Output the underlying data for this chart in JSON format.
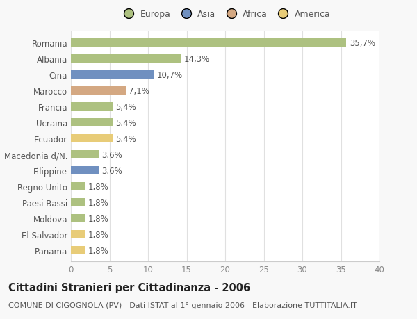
{
  "categories": [
    "Romania",
    "Albania",
    "Cina",
    "Marocco",
    "Francia",
    "Ucraina",
    "Ecuador",
    "Macedonia d/N.",
    "Filippine",
    "Regno Unito",
    "Paesi Bassi",
    "Moldova",
    "El Salvador",
    "Panama"
  ],
  "values": [
    35.7,
    14.3,
    10.7,
    7.1,
    5.4,
    5.4,
    5.4,
    3.6,
    3.6,
    1.8,
    1.8,
    1.8,
    1.8,
    1.8
  ],
  "labels": [
    "35,7%",
    "14,3%",
    "10,7%",
    "7,1%",
    "5,4%",
    "5,4%",
    "5,4%",
    "3,6%",
    "3,6%",
    "1,8%",
    "1,8%",
    "1,8%",
    "1,8%",
    "1,8%"
  ],
  "colors": [
    "#adc180",
    "#adc180",
    "#7090c0",
    "#d4a882",
    "#adc180",
    "#adc180",
    "#e8cc78",
    "#adc180",
    "#7090c0",
    "#adc180",
    "#adc180",
    "#adc180",
    "#e8cc78",
    "#e8cc78"
  ],
  "continent_labels": [
    "Europa",
    "Asia",
    "Africa",
    "America"
  ],
  "continent_colors": [
    "#adc180",
    "#7090c0",
    "#d4a882",
    "#e8cc78"
  ],
  "title": "Cittadini Stranieri per Cittadinanza - 2006",
  "subtitle": "COMUNE DI CIGOGNOLA (PV) - Dati ISTAT al 1° gennaio 2006 - Elaborazione TUTTITALIA.IT",
  "xlim": [
    0,
    40
  ],
  "xticks": [
    0,
    5,
    10,
    15,
    20,
    25,
    30,
    35,
    40
  ],
  "background_color": "#f8f8f8",
  "plot_background": "#ffffff",
  "grid_color": "#e0e0e0",
  "bar_height": 0.55,
  "title_fontsize": 10.5,
  "subtitle_fontsize": 8,
  "label_fontsize": 8.5,
  "tick_fontsize": 8.5,
  "legend_fontsize": 9
}
